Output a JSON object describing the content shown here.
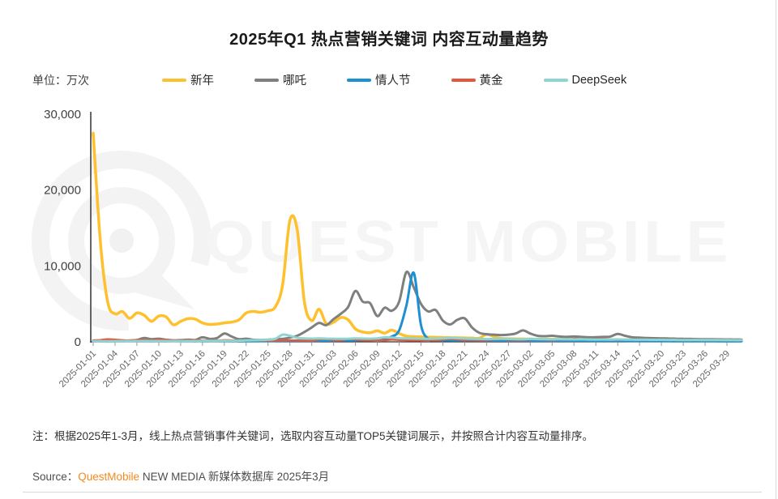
{
  "title": "2025年Q1 热点营销关键词 内容互动量趋势",
  "unit_label": "单位：万次",
  "note": "注：根据2025年1-3月，线上热点营销事件关键词，选取内容互动量TOP5关键词展示，并按照合计内容互动量排序。",
  "source": {
    "prefix": "Source：",
    "brand": "QuestMobile",
    "suffix": " NEW MEDIA 新媒体数据库 2025年3月",
    "brand_color": "#F28A1E"
  },
  "watermark": {
    "text": "QUEST MOBILE"
  },
  "colors": {
    "xinnian": "#FFC02E",
    "nezha": "#7F7F7F",
    "qingrenjie": "#1E8FD2",
    "huangjin": "#E6553C",
    "deepseek": "#8ED5D0"
  },
  "chart_data": {
    "type": "line",
    "title": "2025年Q1 热点营销关键词 内容互动量趋势",
    "ylabel": "万次",
    "ylim": [
      0,
      30000
    ],
    "yticks": [
      0,
      10000,
      20000,
      30000
    ],
    "tick_every": 3,
    "legend_position": "top",
    "grid": false,
    "x": [
      "2025-01-01",
      "2025-01-02",
      "2025-01-03",
      "2025-01-04",
      "2025-01-05",
      "2025-01-06",
      "2025-01-07",
      "2025-01-08",
      "2025-01-09",
      "2025-01-10",
      "2025-01-11",
      "2025-01-12",
      "2025-01-13",
      "2025-01-14",
      "2025-01-15",
      "2025-01-16",
      "2025-01-17",
      "2025-01-18",
      "2025-01-19",
      "2025-01-20",
      "2025-01-21",
      "2025-01-22",
      "2025-01-23",
      "2025-01-24",
      "2025-01-25",
      "2025-01-26",
      "2025-01-27",
      "2025-01-28",
      "2025-01-29",
      "2025-01-30",
      "2025-01-31",
      "2025-02-01",
      "2025-02-02",
      "2025-02-03",
      "2025-02-04",
      "2025-02-05",
      "2025-02-06",
      "2025-02-07",
      "2025-02-08",
      "2025-02-09",
      "2025-02-10",
      "2025-02-11",
      "2025-02-12",
      "2025-02-13",
      "2025-02-14",
      "2025-02-15",
      "2025-02-16",
      "2025-02-17",
      "2025-02-18",
      "2025-02-19",
      "2025-02-20",
      "2025-02-21",
      "2025-02-22",
      "2025-02-23",
      "2025-02-24",
      "2025-02-25",
      "2025-02-26",
      "2025-02-27",
      "2025-02-28",
      "2025-03-01",
      "2025-03-02",
      "2025-03-03",
      "2025-03-04",
      "2025-03-05",
      "2025-03-06",
      "2025-03-07",
      "2025-03-08",
      "2025-03-09",
      "2025-03-10",
      "2025-03-11",
      "2025-03-12",
      "2025-03-13",
      "2025-03-14",
      "2025-03-15",
      "2025-03-16",
      "2025-03-17",
      "2025-03-18",
      "2025-03-19",
      "2025-03-20",
      "2025-03-21",
      "2025-03-22",
      "2025-03-23",
      "2025-03-24",
      "2025-03-25",
      "2025-03-26",
      "2025-03-27",
      "2025-03-28",
      "2025-03-29",
      "2025-03-30",
      "2025-03-31"
    ],
    "series": [
      {
        "name": "新年",
        "color": "#FFC02E",
        "values": [
          27500,
          13000,
          5200,
          3700,
          4000,
          3100,
          3800,
          3500,
          2700,
          3400,
          3300,
          2250,
          2700,
          3050,
          3000,
          2500,
          2300,
          2350,
          2500,
          2600,
          2900,
          3800,
          4000,
          3900,
          4100,
          4600,
          7500,
          16000,
          14800,
          5200,
          2800,
          4300,
          2400,
          2600,
          3200,
          2900,
          1700,
          1300,
          1200,
          1450,
          1150,
          1550,
          1100,
          750,
          680,
          650,
          620,
          600,
          580,
          560,
          540,
          520,
          500,
          480,
          1000,
          700,
          460,
          420,
          400,
          380,
          370,
          360,
          350,
          340,
          330,
          320,
          310,
          300,
          295,
          290,
          285,
          280,
          275,
          270,
          265,
          260,
          255,
          250,
          245,
          240,
          235,
          230,
          225,
          220,
          215,
          210,
          205,
          200,
          195,
          190
        ]
      },
      {
        "name": "哪吒",
        "color": "#7F7F7F",
        "values": [
          150,
          130,
          120,
          110,
          120,
          180,
          250,
          500,
          350,
          420,
          280,
          200,
          220,
          300,
          250,
          600,
          400,
          500,
          1100,
          700,
          350,
          420,
          280,
          250,
          300,
          350,
          400,
          550,
          800,
          1300,
          1900,
          2500,
          2200,
          3000,
          3700,
          4600,
          6700,
          5300,
          5100,
          3400,
          4500,
          4100,
          5300,
          9200,
          7200,
          5000,
          4000,
          4200,
          2800,
          2300,
          2900,
          3100,
          1900,
          1200,
          1000,
          950,
          900,
          950,
          1100,
          1500,
          1100,
          800,
          750,
          800,
          700,
          650,
          700,
          650,
          600,
          620,
          650,
          700,
          1050,
          800,
          600,
          550,
          500,
          480,
          460,
          440,
          420,
          400,
          380,
          360,
          350,
          340,
          330,
          320,
          310,
          300
        ]
      },
      {
        "name": "情人节",
        "color": "#1E8FD2",
        "values": [
          100,
          95,
          90,
          95,
          100,
          105,
          100,
          95,
          90,
          95,
          100,
          105,
          100,
          95,
          90,
          95,
          100,
          105,
          100,
          95,
          90,
          95,
          100,
          105,
          110,
          115,
          120,
          125,
          130,
          135,
          140,
          150,
          160,
          170,
          180,
          190,
          200,
          220,
          260,
          320,
          400,
          700,
          1500,
          4800,
          9100,
          2200,
          400,
          260,
          220,
          200,
          190,
          185,
          180,
          175,
          170,
          165,
          160,
          155,
          150,
          150,
          145,
          140,
          140,
          135,
          135,
          130,
          130,
          125,
          125,
          120,
          120,
          118,
          116,
          114,
          112,
          110,
          108,
          106,
          104,
          102,
          100,
          100,
          98,
          96,
          94,
          92,
          90,
          90,
          88,
          86
        ]
      },
      {
        "name": "黄金",
        "color": "#E6553C",
        "values": [
          200,
          250,
          350,
          300,
          220,
          180,
          250,
          220,
          180,
          300,
          250,
          180,
          160,
          200,
          220,
          180,
          160,
          180,
          220,
          200,
          170,
          180,
          200,
          180,
          160,
          170,
          180,
          200,
          180,
          160,
          170,
          300,
          350,
          250,
          200,
          380,
          300,
          220,
          200,
          250,
          200,
          300,
          250,
          200,
          180,
          200,
          250,
          200,
          300,
          380,
          300,
          220,
          250,
          200,
          250,
          300,
          350,
          280,
          220,
          250,
          300,
          350,
          280,
          250,
          300,
          280,
          400,
          350,
          280,
          320,
          380,
          300,
          260,
          300,
          280,
          250,
          280,
          300,
          280,
          260,
          280,
          300,
          280,
          260,
          250,
          260,
          280,
          270,
          260,
          280
        ]
      },
      {
        "name": "DeepSeek",
        "color": "#8ED5D0",
        "values": [
          100,
          95,
          90,
          95,
          100,
          105,
          110,
          105,
          100,
          105,
          110,
          105,
          100,
          105,
          110,
          115,
          120,
          125,
          130,
          140,
          150,
          180,
          210,
          240,
          280,
          400,
          950,
          800,
          520,
          460,
          430,
          450,
          430,
          420,
          400,
          420,
          450,
          430,
          420,
          450,
          600,
          550,
          480,
          450,
          430,
          420,
          400,
          420,
          450,
          520,
          480,
          430,
          400,
          380,
          360,
          380,
          400,
          380,
          360,
          350,
          380,
          360,
          340,
          330,
          340,
          330,
          320,
          330,
          310,
          300,
          310,
          300,
          320,
          300,
          290,
          280,
          280,
          270,
          270,
          260,
          260,
          250,
          250,
          250,
          240,
          240,
          230,
          230,
          220,
          220
        ]
      }
    ]
  }
}
